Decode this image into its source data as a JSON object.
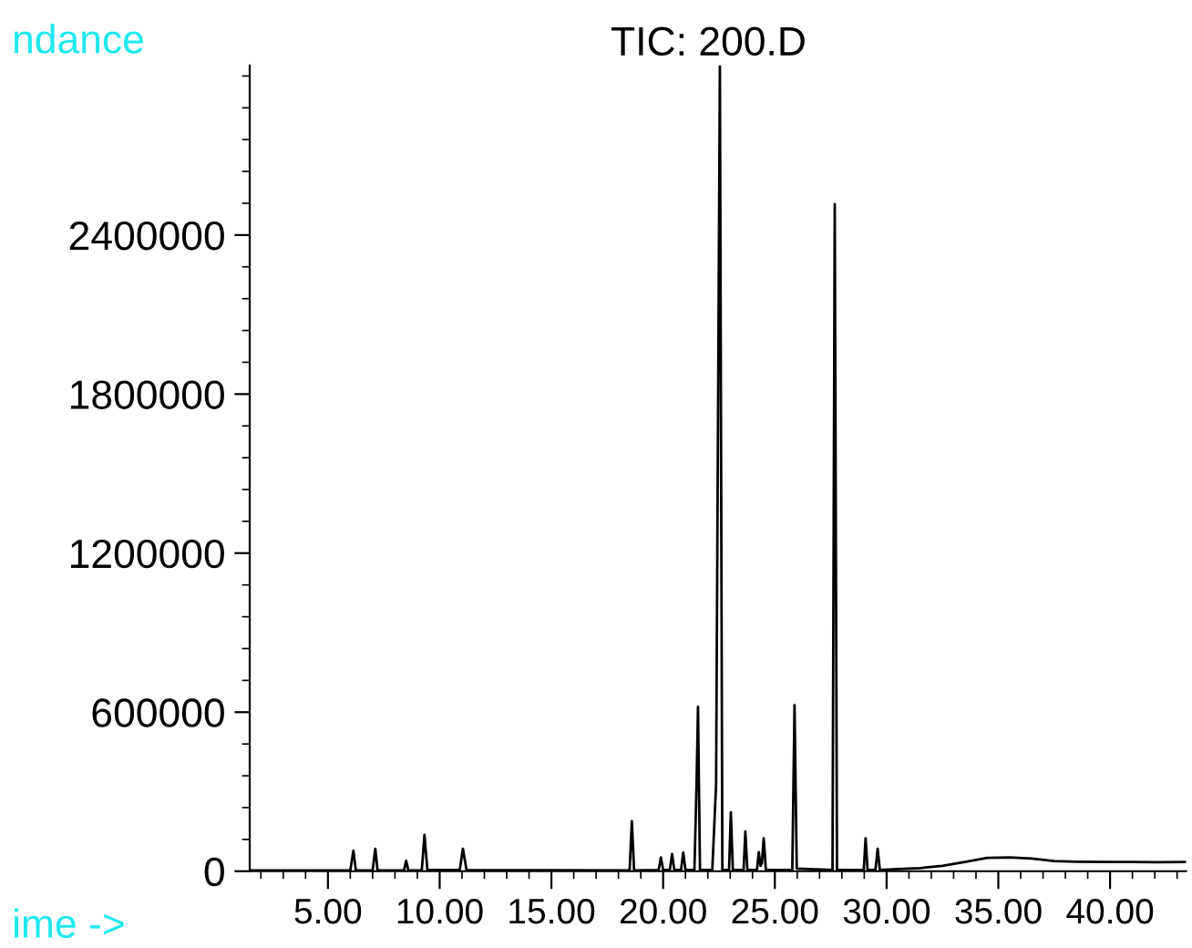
{
  "chart_data": {
    "type": "line",
    "title": "TIC: 200.D",
    "xlabel": "ime ->",
    "ylabel": "ndance",
    "x": [
      1.5,
      6.0,
      6.14,
      6.25,
      7.0,
      7.12,
      7.22,
      8.4,
      8.5,
      8.6,
      9.2,
      9.32,
      9.45,
      10.9,
      11.04,
      11.2,
      18.5,
      18.6,
      18.7,
      19.8,
      19.9,
      20.0,
      20.3,
      20.4,
      20.5,
      20.8,
      20.9,
      21.0,
      21.4,
      21.5,
      21.56,
      21.65,
      22.2,
      22.37,
      22.54,
      22.65,
      22.95,
      23.03,
      23.12,
      23.6,
      23.68,
      23.77,
      24.2,
      24.28,
      24.36,
      24.42,
      24.5,
      24.6,
      25.78,
      25.88,
      25.98,
      27.58,
      27.68,
      27.78,
      28.98,
      29.06,
      29.15,
      29.5,
      29.6,
      29.7,
      30.5,
      31.5,
      32.5,
      33.5,
      34.5,
      35.5,
      36.5,
      37.5,
      38.5,
      40,
      41,
      42,
      43.4
    ],
    "series": [
      {
        "color": "#000000",
        "values": [
          3000,
          3000,
          78000,
          3000,
          3000,
          85000,
          3000,
          3000,
          39000,
          3000,
          3000,
          137000,
          5000,
          5000,
          85000,
          5000,
          3000,
          189000,
          3000,
          5000,
          52000,
          5000,
          5000,
          65000,
          5000,
          5000,
          70000,
          5000,
          5000,
          345000,
          620000,
          5000,
          5000,
          326000,
          3040000,
          5000,
          5000,
          222000,
          5000,
          5000,
          150000,
          5000,
          5000,
          72000,
          20000,
          30000,
          124000,
          5000,
          5000,
          626000,
          10000,
          5000,
          2517000,
          5000,
          5000,
          124000,
          5000,
          5000,
          85000,
          5000,
          8000,
          12000,
          20000,
          35000,
          50000,
          52000,
          48000,
          38000,
          36000,
          35000,
          35000,
          34000,
          35000
        ]
      }
    ],
    "xlim": [
      1.5,
      43.4
    ],
    "ylim": [
      0,
      3040000
    ],
    "xticks": [
      {
        "value": 2,
        "label": null
      },
      {
        "value": 3,
        "label": null
      },
      {
        "value": 4,
        "label": null
      },
      {
        "value": 5,
        "label": "5.00"
      },
      {
        "value": 6,
        "label": null
      },
      {
        "value": 7,
        "label": null
      },
      {
        "value": 8,
        "label": null
      },
      {
        "value": 9,
        "label": null
      },
      {
        "value": 10,
        "label": "10.00"
      },
      {
        "value": 11,
        "label": null
      },
      {
        "value": 12,
        "label": null
      },
      {
        "value": 13,
        "label": null
      },
      {
        "value": 14,
        "label": null
      },
      {
        "value": 15,
        "label": "15.00"
      },
      {
        "value": 16,
        "label": null
      },
      {
        "value": 17,
        "label": null
      },
      {
        "value": 18,
        "label": null
      },
      {
        "value": 19,
        "label": null
      },
      {
        "value": 20,
        "label": "20.00"
      },
      {
        "value": 21,
        "label": null
      },
      {
        "value": 22,
        "label": null
      },
      {
        "value": 23,
        "label": null
      },
      {
        "value": 24,
        "label": null
      },
      {
        "value": 25,
        "label": "25.00"
      },
      {
        "value": 26,
        "label": null
      },
      {
        "value": 27,
        "label": null
      },
      {
        "value": 28,
        "label": null
      },
      {
        "value": 29,
        "label": null
      },
      {
        "value": 30,
        "label": "30.00"
      },
      {
        "value": 31,
        "label": null
      },
      {
        "value": 32,
        "label": null
      },
      {
        "value": 33,
        "label": null
      },
      {
        "value": 34,
        "label": null
      },
      {
        "value": 35,
        "label": "35.00"
      },
      {
        "value": 36,
        "label": null
      },
      {
        "value": 37,
        "label": null
      },
      {
        "value": 38,
        "label": null
      },
      {
        "value": 39,
        "label": null
      },
      {
        "value": 40,
        "label": "40.00"
      },
      {
        "value": 41,
        "label": null
      },
      {
        "value": 42,
        "label": null
      },
      {
        "value": 43,
        "label": null
      }
    ],
    "yticks": [
      {
        "value": 0,
        "label": "0"
      },
      {
        "value": 120000,
        "label": null
      },
      {
        "value": 240000,
        "label": null
      },
      {
        "value": 360000,
        "label": null
      },
      {
        "value": 480000,
        "label": null
      },
      600000,
      {
        "value": 720000,
        "label": null
      },
      {
        "value": 840000,
        "label": null
      },
      {
        "value": 960000,
        "label": null
      },
      {
        "value": 1080000,
        "label": null
      },
      1200000,
      {
        "value": 1320000,
        "label": null
      },
      {
        "value": 1440000,
        "label": null
      },
      {
        "value": 1560000,
        "label": null
      },
      {
        "value": 1680000,
        "label": null
      },
      1800000,
      {
        "value": 1920000,
        "label": null
      },
      {
        "value": 2040000,
        "label": null
      },
      {
        "value": 2160000,
        "label": null
      },
      {
        "value": 2280000,
        "label": null
      },
      2400000,
      {
        "value": 2520000,
        "label": null
      },
      {
        "value": 2640000,
        "label": null
      },
      {
        "value": 2760000,
        "label": null
      },
      {
        "value": 2880000,
        "label": null
      },
      {
        "value": 3000000,
        "label": null
      }
    ],
    "grid": false,
    "marker": "none",
    "line_style": "solid"
  }
}
